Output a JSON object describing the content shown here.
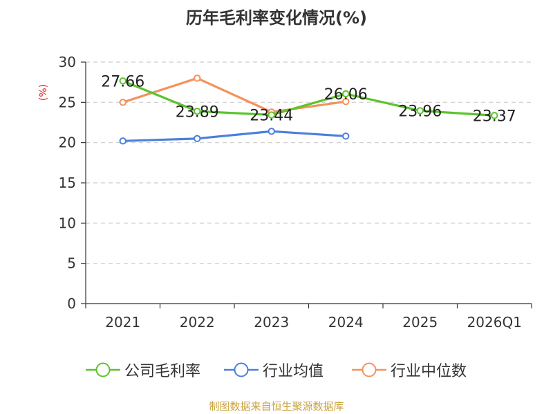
{
  "chart_data": {
    "type": "line",
    "title": "历年毛利率变化情况(%)",
    "ylabel": "(%)",
    "xlabel": "",
    "categories": [
      "2021",
      "2022",
      "2023",
      "2024",
      "2025",
      "2026Q1"
    ],
    "ylim": [
      0,
      30
    ],
    "yticks": [
      0,
      5,
      10,
      15,
      20,
      25,
      30
    ],
    "grid": true,
    "legend_position": "bottom",
    "series": [
      {
        "name": "公司毛利率",
        "color": "#5ac42b",
        "values": [
          27.66,
          23.89,
          23.44,
          26.06,
          23.96,
          23.37
        ],
        "labels": [
          "27.66",
          "23.89",
          "23.44",
          "26.06",
          "23.96",
          "23.37"
        ]
      },
      {
        "name": "行业均值",
        "color": "#4a7fdc",
        "values": [
          20.2,
          20.5,
          21.4,
          20.8,
          null,
          null
        ],
        "labels": []
      },
      {
        "name": "行业中位数",
        "color": "#f5915a",
        "values": [
          25.0,
          28.0,
          23.8,
          25.1,
          null,
          null
        ],
        "labels": []
      }
    ]
  },
  "footer": "制图数据来自恒生聚源数据库"
}
